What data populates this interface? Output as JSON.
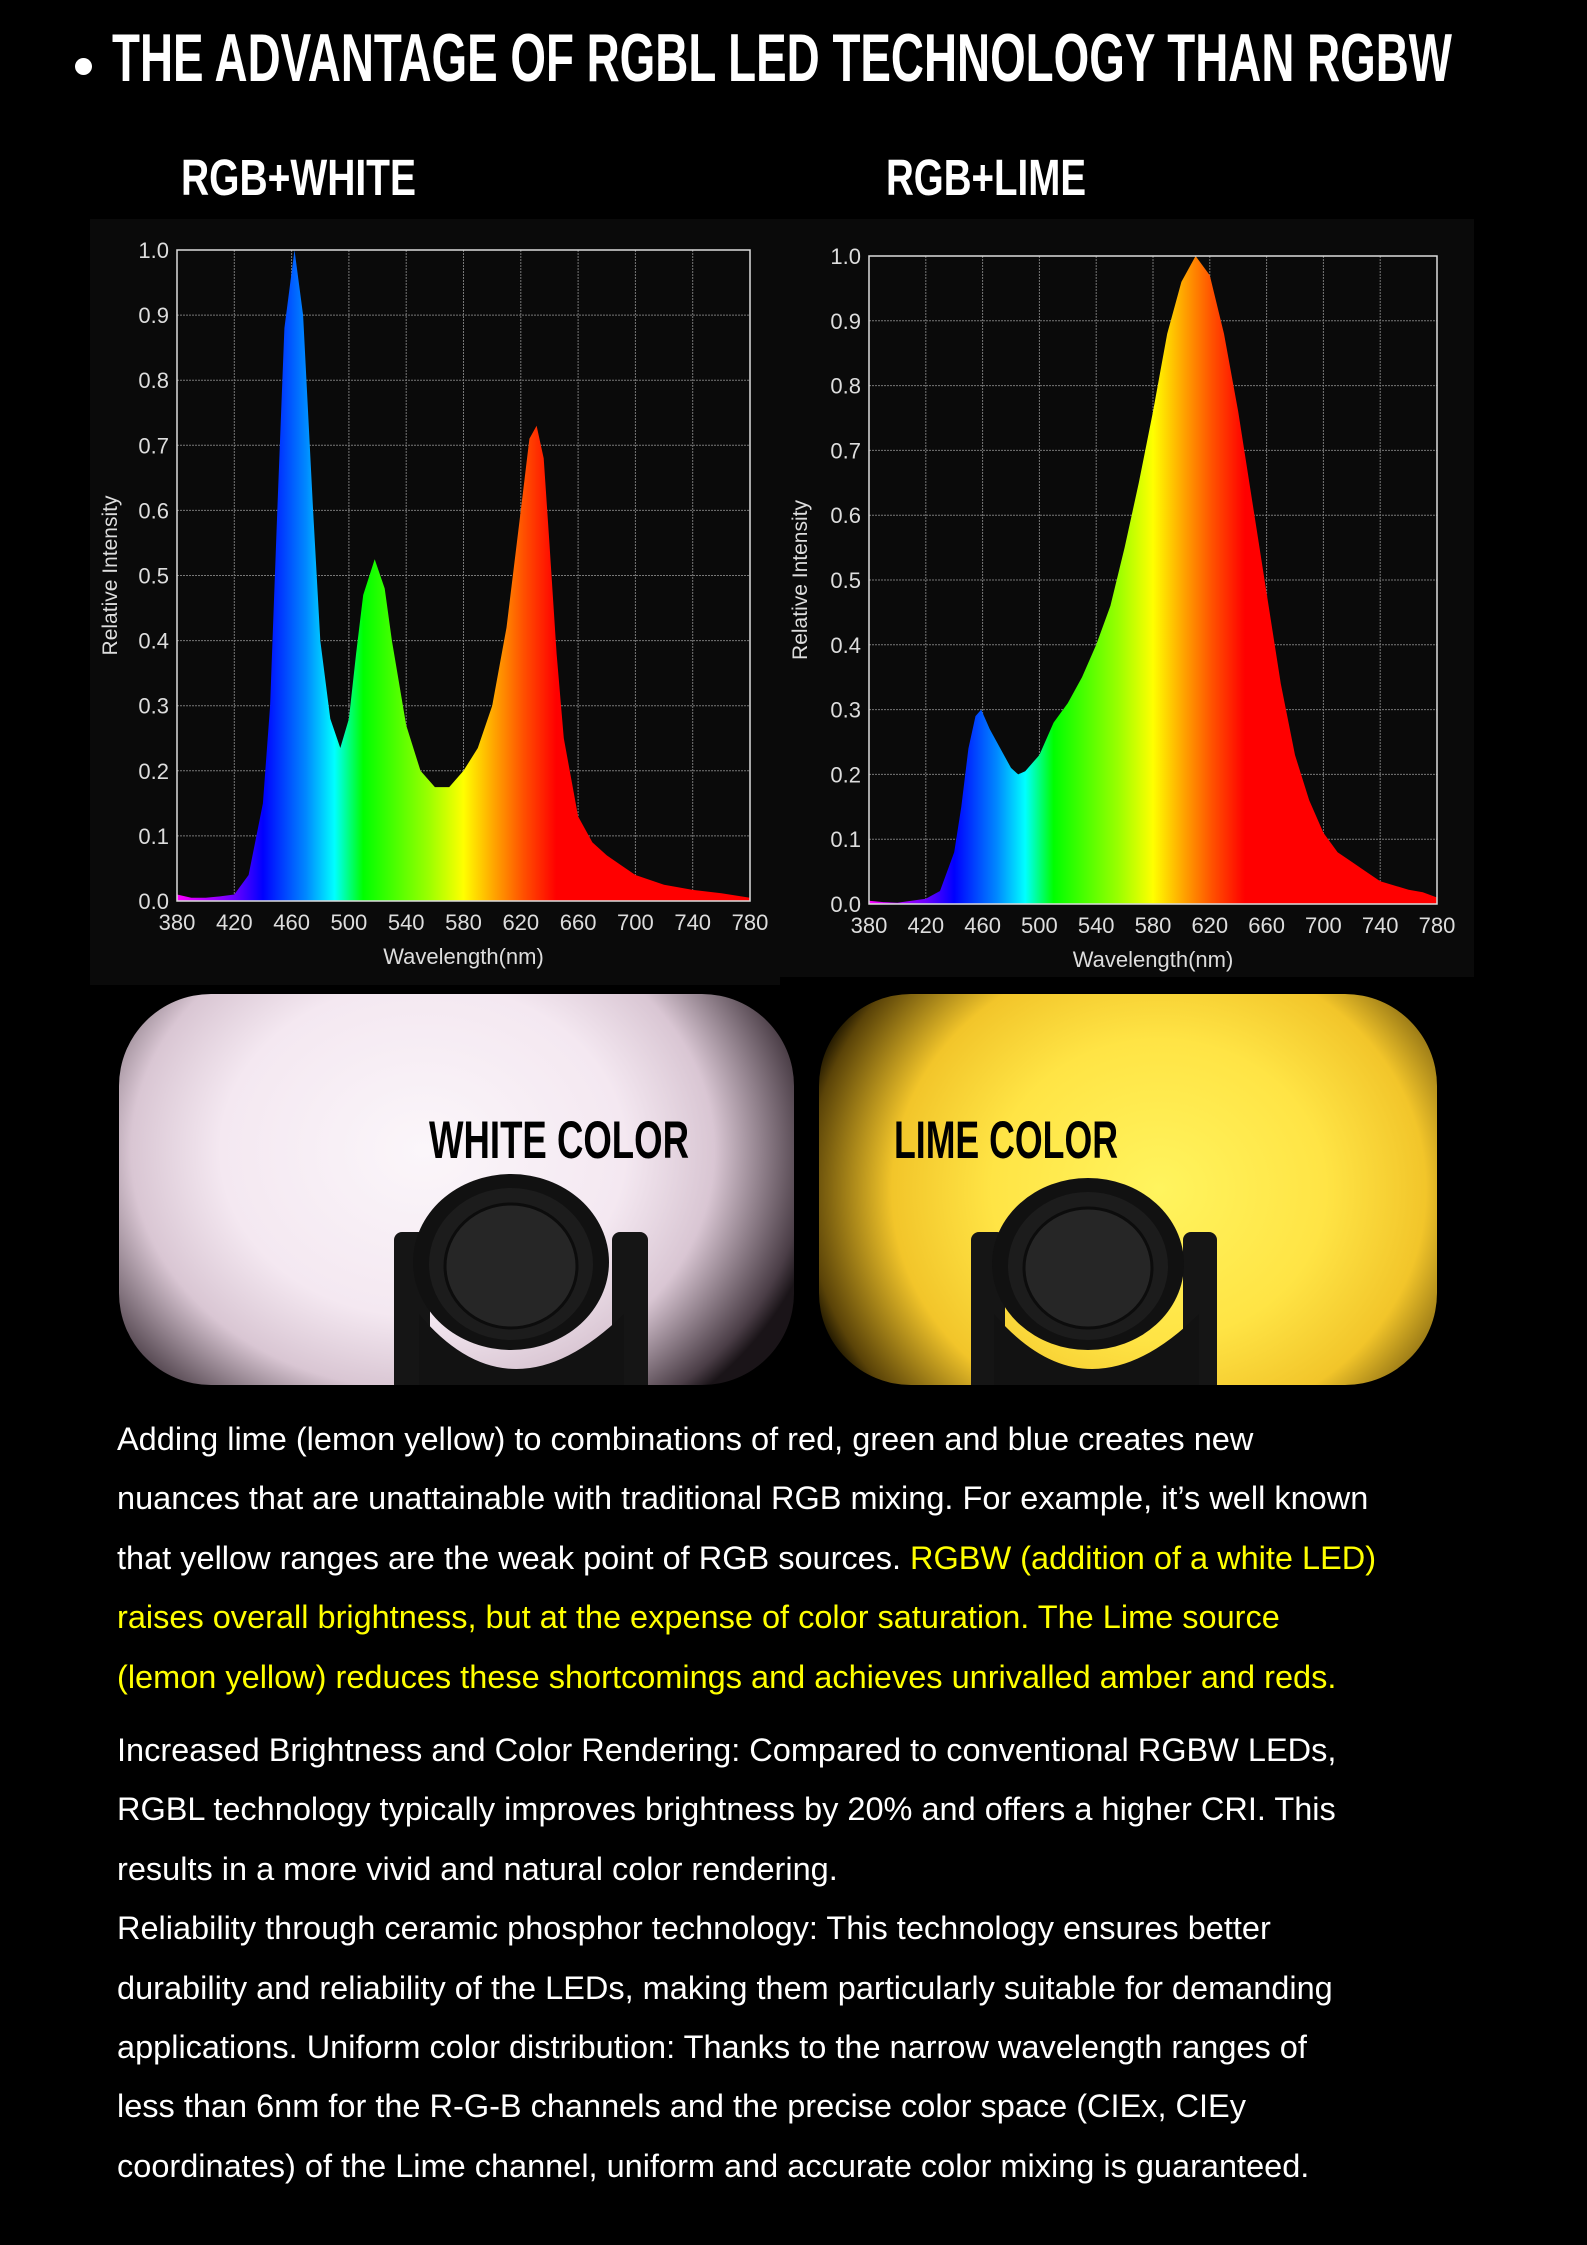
{
  "header": {
    "title": "THE ADVANTAGE OF RGBL LED TECHNOLOGY THAN RGBW"
  },
  "sections": {
    "left_label": "RGB+WHITE",
    "right_label": "RGB+LIME"
  },
  "photos": {
    "white_label": "WHITE COLOR",
    "lime_label": "LIME COLOR"
  },
  "colors": {
    "highlight": "#ffff00",
    "white_beam": "#f6eef4",
    "lime_beam": "#ffe04a"
  },
  "chart_data": [
    {
      "type": "area",
      "title": "RGB+WHITE",
      "xlabel": "Wavelength(nm)",
      "ylabel": "Relative Intensity",
      "xlim": [
        380,
        780
      ],
      "ylim": [
        0,
        1.0
      ],
      "grid": true,
      "xticks": [
        "380",
        "420",
        "460",
        "500",
        "540",
        "580",
        "620",
        "660",
        "700",
        "740",
        "780"
      ],
      "yticks": [
        "0.0",
        "0.1",
        "0.2",
        "0.3",
        "0.4",
        "0.5",
        "0.6",
        "0.7",
        "0.8",
        "0.9",
        "1.0"
      ],
      "x": [
        380,
        390,
        400,
        410,
        420,
        430,
        440,
        445,
        450,
        455,
        462,
        468,
        475,
        480,
        487,
        494,
        500,
        505,
        510,
        518,
        525,
        530,
        540,
        550,
        560,
        570,
        580,
        590,
        600,
        610,
        620,
        626,
        631,
        636,
        640,
        645,
        650,
        660,
        670,
        680,
        690,
        700,
        720,
        740,
        760,
        780
      ],
      "y": [
        0.01,
        0.005,
        0.005,
        0.007,
        0.01,
        0.04,
        0.15,
        0.3,
        0.6,
        0.88,
        1.0,
        0.9,
        0.6,
        0.4,
        0.28,
        0.235,
        0.28,
        0.38,
        0.47,
        0.525,
        0.48,
        0.4,
        0.27,
        0.2,
        0.175,
        0.175,
        0.2,
        0.235,
        0.3,
        0.42,
        0.6,
        0.71,
        0.73,
        0.68,
        0.55,
        0.38,
        0.25,
        0.13,
        0.09,
        0.07,
        0.055,
        0.04,
        0.025,
        0.017,
        0.012,
        0.005
      ]
    },
    {
      "type": "area",
      "title": "RGB+LIME",
      "xlabel": "Wavelength(nm)",
      "ylabel": "Relative Intensity",
      "xlim": [
        380,
        780
      ],
      "ylim": [
        0,
        1.0
      ],
      "grid": true,
      "xticks": [
        "380",
        "420",
        "460",
        "500",
        "540",
        "580",
        "620",
        "660",
        "700",
        "740",
        "780"
      ],
      "yticks": [
        "0.0",
        "0.1",
        "0.2",
        "0.3",
        "0.4",
        "0.5",
        "0.6",
        "0.7",
        "0.8",
        "0.9",
        "1.0"
      ],
      "x": [
        380,
        390,
        400,
        420,
        430,
        440,
        445,
        450,
        455,
        459,
        465,
        470,
        480,
        485,
        490,
        500,
        510,
        520,
        530,
        540,
        550,
        560,
        570,
        580,
        590,
        600,
        610,
        620,
        630,
        640,
        650,
        660,
        670,
        680,
        690,
        700,
        710,
        720,
        730,
        740,
        760,
        770,
        780
      ],
      "y": [
        0.005,
        0.003,
        0.002,
        0.008,
        0.02,
        0.08,
        0.15,
        0.24,
        0.29,
        0.3,
        0.27,
        0.25,
        0.21,
        0.2,
        0.205,
        0.23,
        0.28,
        0.31,
        0.35,
        0.4,
        0.46,
        0.55,
        0.65,
        0.76,
        0.88,
        0.96,
        1.0,
        0.97,
        0.88,
        0.76,
        0.62,
        0.48,
        0.34,
        0.23,
        0.16,
        0.11,
        0.08,
        0.065,
        0.05,
        0.035,
        0.022,
        0.018,
        0.01
      ]
    }
  ],
  "paragraph1": {
    "l1": "Adding lime (lemon yellow) to combinations of red, green and blue creates new",
    "l2": "nuances that are unattainable with traditional RGB mixing. For example, it’s well known",
    "l3a": "that yellow ranges are the weak point of RGB sources. ",
    "l3b": "RGBW (addition of a white LED)",
    "l4": "raises overall brightness, but at the expense of color saturation. The Lime source",
    "l5": "(lemon yellow) reduces these shortcomings and achieves unrivalled amber and reds."
  },
  "paragraph2": [
    "Increased Brightness and Color Rendering: Compared to conventional RGBW LEDs,",
    "RGBL technology typically improves brightness by 20% and offers a higher CRI. This",
    "results in a more vivid and natural color rendering.",
    "Reliability through ceramic phosphor technology: This technology ensures better",
    "durability and reliability of the LEDs, making them particularly suitable for demanding",
    "applications. Uniform color distribution: Thanks to the narrow wavelength ranges of",
    "less than 6nm for the R-G-B channels and the precise color space (CIEx, CIEy",
    "coordinates) of the Lime channel, uniform and accurate color mixing is guaranteed."
  ]
}
